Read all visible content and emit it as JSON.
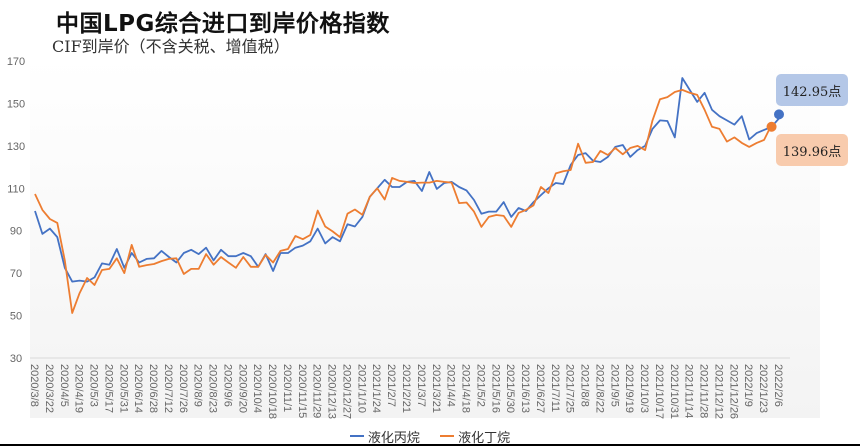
{
  "chart_data": {
    "type": "line",
    "title": "中国LPG综合进口到岸价格指数",
    "subtitle": "CIF到岸价（不含关税、增值税）",
    "xlabel": "",
    "ylabel": "",
    "ylim": [
      30,
      170
    ],
    "yticks": [
      30,
      50,
      70,
      90,
      110,
      130,
      150,
      170
    ],
    "grid": false,
    "legend_position": "bottom",
    "x_start": "2020/3/8",
    "x_interval": "weekly",
    "x_tick_labels": [
      "2020/3/8",
      "2020/3/22",
      "2020/4/5",
      "2020/4/19",
      "2020/5/3",
      "2020/5/17",
      "2020/5/31",
      "2020/6/14",
      "2020/6/28",
      "2020/7/12",
      "2020/7/26",
      "2020/8/9",
      "2020/8/23",
      "2020/9/6",
      "2020/9/20",
      "2020/10/4",
      "2020/10/18",
      "2020/11/1",
      "2020/11/15",
      "2020/11/29",
      "2020/12/13",
      "2020/12/27",
      "2021/1/10",
      "2021/1/24",
      "2021/2/7",
      "2021/2/21",
      "2021/3/7",
      "2021/3/21",
      "2021/4/4",
      "2021/4/18",
      "2021/5/2",
      "2021/5/16",
      "2021/5/30",
      "2021/6/13",
      "2021/6/27",
      "2021/7/11",
      "2021/7/25",
      "2021/8/8",
      "2021/8/22",
      "2021/9/5",
      "2021/9/19",
      "2021/10/3",
      "2021/10/17",
      "2021/10/31",
      "2021/11/14",
      "2021/11/28",
      "2021/12/12",
      "2021/12/26",
      "2022/1/9",
      "2022/1/23",
      "2022/2/6"
    ],
    "series": [
      {
        "name": "液化丙烷",
        "color": "#4472c4",
        "values": [
          99.3,
          88.5,
          91,
          87,
          72.5,
          66,
          66.5,
          66,
          68,
          74.6,
          74,
          81.4,
          72.5,
          79.5,
          75,
          76.7,
          77,
          80.5,
          77.6,
          75,
          79.5,
          81,
          79,
          82,
          76,
          81,
          78,
          78,
          79.5,
          78,
          73,
          79,
          71,
          79.5,
          79.5,
          82,
          83,
          85,
          91,
          84,
          87,
          85,
          93,
          92,
          96.5,
          106,
          110,
          114,
          110.6,
          110.6,
          113,
          113.5,
          108.7,
          117.7,
          109.7,
          112.5,
          113,
          110.6,
          109,
          104.5,
          98,
          99,
          99,
          103.5,
          96.5,
          100.7,
          99.3,
          103.5,
          106.8,
          110,
          112.5,
          112,
          121,
          125.7,
          126.6,
          123,
          122.4,
          124.8,
          129.5,
          130.4,
          124.8,
          128,
          130,
          138,
          142,
          141.7,
          134,
          162,
          156.4,
          150.7,
          155,
          147,
          144,
          142,
          140,
          144,
          133,
          136,
          137.5,
          139,
          142.95
        ]
      },
      {
        "name": "液化丁烷",
        "color": "#ed7d31",
        "values": [
          107.3,
          99.8,
          95.5,
          93.7,
          76,
          51.2,
          60.6,
          67.7,
          64.4,
          71.5,
          72,
          77,
          70,
          83.3,
          73,
          73.8,
          74.3,
          75.7,
          76.7,
          77,
          69.6,
          72,
          72,
          79,
          74,
          77.6,
          75,
          72.5,
          77.6,
          73,
          73,
          78.6,
          75,
          80.5,
          81.4,
          87.5,
          86,
          88,
          99.5,
          92,
          89.7,
          87,
          98,
          100,
          97.5,
          106,
          110,
          104.7,
          114.9,
          113.5,
          113,
          112.5,
          112.7,
          112.7,
          113.5,
          113,
          112.7,
          103,
          103.3,
          99,
          91.8,
          96.5,
          97.4,
          97,
          91.8,
          98.4,
          99.8,
          102,
          110.6,
          107.8,
          117,
          118,
          118.6,
          131,
          122,
          122.4,
          127.6,
          125.7,
          129,
          126,
          129,
          130,
          128,
          142,
          152,
          153,
          155.4,
          156.4,
          155,
          154,
          147,
          139,
          138,
          132,
          134,
          131.4,
          129.5,
          131.4,
          132.8,
          139.96
        ]
      }
    ],
    "annotations": [
      {
        "series": "液化丙烷",
        "label": "142.95点",
        "box_color": "#b4c7e7"
      },
      {
        "series": "液化丁烷",
        "label": "139.96点",
        "box_color": "#f8cbad"
      }
    ]
  }
}
